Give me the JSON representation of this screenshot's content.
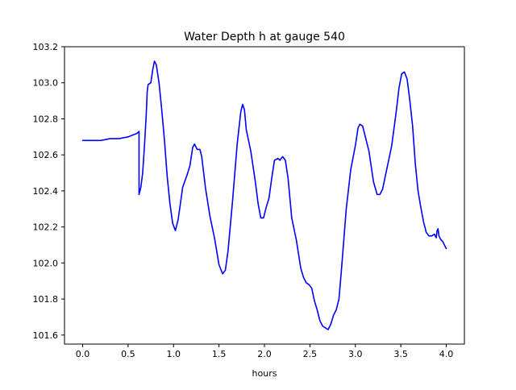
{
  "chart_data": {
    "type": "line",
    "title": "Water Depth h at gauge 540",
    "xlabel": "hours",
    "ylabel": "",
    "xlim": [
      -0.2,
      4.2
    ],
    "ylim": [
      101.55,
      103.2
    ],
    "xticks": [
      0.0,
      0.5,
      1.0,
      1.5,
      2.0,
      2.5,
      3.0,
      3.5,
      4.0
    ],
    "xtick_labels": [
      "0.0",
      "0.5",
      "1.0",
      "1.5",
      "2.0",
      "2.5",
      "3.0",
      "3.5",
      "4.0"
    ],
    "yticks": [
      101.6,
      101.8,
      102.0,
      102.2,
      102.4,
      102.6,
      102.8,
      103.0,
      103.2
    ],
    "ytick_labels": [
      "101.6",
      "101.8",
      "102.0",
      "102.2",
      "102.4",
      "102.6",
      "102.8",
      "103.0",
      "103.2"
    ],
    "grid": false,
    "series": [
      {
        "color": "#0000ff",
        "points": [
          [
            0.0,
            102.68
          ],
          [
            0.1,
            102.68
          ],
          [
            0.2,
            102.68
          ],
          [
            0.3,
            102.69
          ],
          [
            0.4,
            102.69
          ],
          [
            0.5,
            102.7
          ],
          [
            0.55,
            102.71
          ],
          [
            0.6,
            102.72
          ],
          [
            0.62,
            102.73
          ],
          [
            0.62,
            102.38
          ],
          [
            0.64,
            102.42
          ],
          [
            0.66,
            102.5
          ],
          [
            0.68,
            102.65
          ],
          [
            0.7,
            102.83
          ],
          [
            0.71,
            102.95
          ],
          [
            0.72,
            102.99
          ],
          [
            0.75,
            103.0
          ],
          [
            0.77,
            103.07
          ],
          [
            0.79,
            103.12
          ],
          [
            0.81,
            103.1
          ],
          [
            0.84,
            103.0
          ],
          [
            0.87,
            102.85
          ],
          [
            0.9,
            102.68
          ],
          [
            0.93,
            102.48
          ],
          [
            0.96,
            102.33
          ],
          [
            0.99,
            102.22
          ],
          [
            1.02,
            102.18
          ],
          [
            1.05,
            102.24
          ],
          [
            1.07,
            102.31
          ],
          [
            1.1,
            102.42
          ],
          [
            1.15,
            102.49
          ],
          [
            1.18,
            102.54
          ],
          [
            1.21,
            102.64
          ],
          [
            1.23,
            102.66
          ],
          [
            1.26,
            102.63
          ],
          [
            1.29,
            102.63
          ],
          [
            1.31,
            102.59
          ],
          [
            1.35,
            102.42
          ],
          [
            1.4,
            102.26
          ],
          [
            1.45,
            102.14
          ],
          [
            1.5,
            101.99
          ],
          [
            1.54,
            101.94
          ],
          [
            1.57,
            101.96
          ],
          [
            1.6,
            102.07
          ],
          [
            1.65,
            102.35
          ],
          [
            1.7,
            102.66
          ],
          [
            1.74,
            102.84
          ],
          [
            1.76,
            102.88
          ],
          [
            1.78,
            102.85
          ],
          [
            1.8,
            102.74
          ],
          [
            1.85,
            102.62
          ],
          [
            1.9,
            102.45
          ],
          [
            1.93,
            102.33
          ],
          [
            1.96,
            102.25
          ],
          [
            1.99,
            102.25
          ],
          [
            2.02,
            102.31
          ],
          [
            2.05,
            102.36
          ],
          [
            2.08,
            102.47
          ],
          [
            2.11,
            102.57
          ],
          [
            2.15,
            102.58
          ],
          [
            2.17,
            102.57
          ],
          [
            2.2,
            102.59
          ],
          [
            2.23,
            102.57
          ],
          [
            2.26,
            102.47
          ],
          [
            2.3,
            102.25
          ],
          [
            2.35,
            102.13
          ],
          [
            2.4,
            101.97
          ],
          [
            2.43,
            101.92
          ],
          [
            2.46,
            101.89
          ],
          [
            2.49,
            101.88
          ],
          [
            2.52,
            101.86
          ],
          [
            2.55,
            101.79
          ],
          [
            2.58,
            101.74
          ],
          [
            2.61,
            101.68
          ],
          [
            2.64,
            101.65
          ],
          [
            2.67,
            101.64
          ],
          [
            2.7,
            101.63
          ],
          [
            2.73,
            101.66
          ],
          [
            2.76,
            101.71
          ],
          [
            2.79,
            101.74
          ],
          [
            2.82,
            101.8
          ],
          [
            2.85,
            101.98
          ],
          [
            2.9,
            102.3
          ],
          [
            2.95,
            102.52
          ],
          [
            3.0,
            102.65
          ],
          [
            3.03,
            102.75
          ],
          [
            3.05,
            102.77
          ],
          [
            3.08,
            102.76
          ],
          [
            3.1,
            102.72
          ],
          [
            3.15,
            102.62
          ],
          [
            3.2,
            102.45
          ],
          [
            3.24,
            102.38
          ],
          [
            3.27,
            102.38
          ],
          [
            3.3,
            102.41
          ],
          [
            3.35,
            102.53
          ],
          [
            3.4,
            102.65
          ],
          [
            3.45,
            102.84
          ],
          [
            3.48,
            102.97
          ],
          [
            3.51,
            103.05
          ],
          [
            3.54,
            103.06
          ],
          [
            3.57,
            103.02
          ],
          [
            3.6,
            102.9
          ],
          [
            3.63,
            102.76
          ],
          [
            3.66,
            102.55
          ],
          [
            3.69,
            102.4
          ],
          [
            3.72,
            102.31
          ],
          [
            3.75,
            102.23
          ],
          [
            3.78,
            102.17
          ],
          [
            3.81,
            102.15
          ],
          [
            3.84,
            102.15
          ],
          [
            3.87,
            102.16
          ],
          [
            3.89,
            102.14
          ],
          [
            3.9,
            102.18
          ],
          [
            3.91,
            102.19
          ],
          [
            3.92,
            102.15
          ],
          [
            3.94,
            102.13
          ],
          [
            3.96,
            102.12
          ],
          [
            3.98,
            102.1
          ],
          [
            4.0,
            102.08
          ]
        ]
      }
    ]
  }
}
